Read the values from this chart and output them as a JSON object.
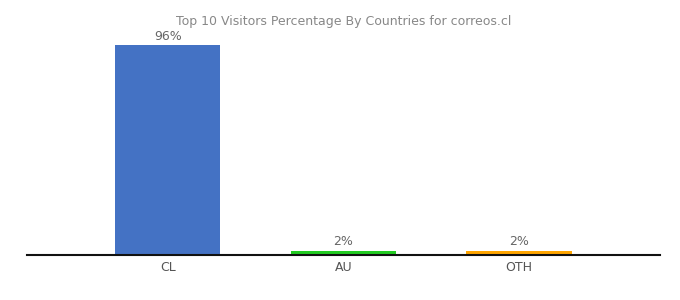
{
  "title": "Top 10 Visitors Percentage By Countries for correos.cl",
  "categories": [
    "CL",
    "AU",
    "OTH"
  ],
  "values": [
    96,
    2,
    2
  ],
  "bar_colors": [
    "#4472C4",
    "#22CC22",
    "#FFA500"
  ],
  "ylim": [
    0,
    100
  ],
  "background_color": "#ffffff",
  "label_fontsize": 9,
  "tick_fontsize": 9,
  "title_fontsize": 9,
  "bar_width": 0.6,
  "xlim_left": -0.8,
  "xlim_right": 2.8
}
